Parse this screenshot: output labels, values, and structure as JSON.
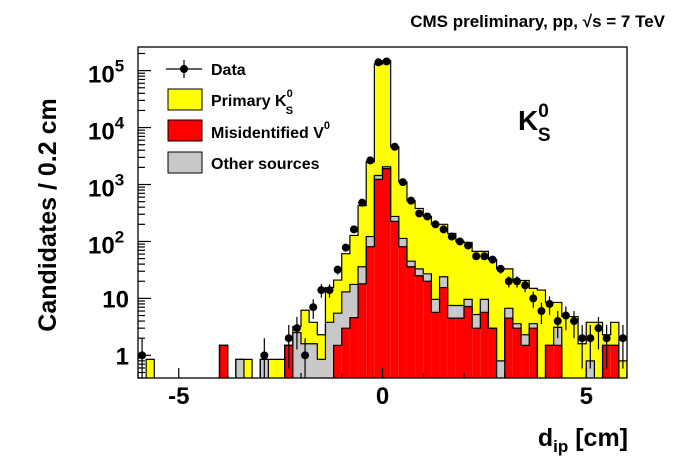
{
  "chart_data": {
    "type": "bar",
    "subtype": "stacked-histogram",
    "title": "CMS preliminary, pp,  √s = 7 TeV",
    "xlabel": {
      "main": "d",
      "sub": "ip",
      "rest": " [cm]"
    },
    "ylabel": "Candidates / 0.2 cm",
    "xlim": [
      -6,
      6
    ],
    "ylim": [
      0.4,
      260000
    ],
    "yscale": "log",
    "bin_start": -6,
    "bin_width": 0.2,
    "x_ticks": [
      {
        "value": -5,
        "label": "-5"
      },
      {
        "value": 0,
        "label": "0"
      },
      {
        "value": 5,
        "label": "5"
      }
    ],
    "y_ticks": [
      {
        "value": 1,
        "base": "1",
        "exp": ""
      },
      {
        "value": 10,
        "base": "10",
        "exp": ""
      },
      {
        "value": 100,
        "base": "10",
        "exp": "2"
      },
      {
        "value": 1000,
        "base": "10",
        "exp": "3"
      },
      {
        "value": 10000,
        "base": "10",
        "exp": "4"
      },
      {
        "value": 100000,
        "base": "10",
        "exp": "5"
      }
    ],
    "annotation": {
      "main": "K",
      "sup": "0",
      "sub": "S"
    },
    "legend_position": "top-left",
    "series": [
      {
        "name": "Misidentified V0",
        "label": "Misidentified V",
        "sup": "0",
        "sub": "",
        "color": "#ff0000",
        "values": [
          0,
          0,
          0,
          0,
          0,
          0,
          0,
          0,
          0,
          0,
          1.5,
          0,
          0,
          0,
          0,
          0,
          0,
          0,
          1.5,
          0,
          0,
          0,
          0,
          0,
          1.5,
          3,
          4.6,
          18,
          81,
          1230,
          1900,
          225,
          81,
          36,
          25,
          20,
          5.7,
          15.5,
          4.5,
          4.5,
          7.2,
          3,
          5.7,
          3,
          0,
          4.5,
          3,
          1.5,
          3,
          0,
          1.5,
          1.5,
          0,
          0,
          0,
          0,
          0,
          1.5,
          1.5,
          0
        ]
      },
      {
        "name": "Other sources",
        "label": "Other sources",
        "sup": "",
        "sub": "",
        "color": "#c8c8c8",
        "values": [
          0,
          0,
          0,
          0,
          0,
          0,
          0,
          0,
          0,
          0,
          0,
          0,
          0.85,
          0,
          0,
          0.85,
          0,
          0,
          0,
          2.5,
          1.6,
          1.6,
          0.85,
          3.8,
          4,
          10,
          13,
          18,
          41,
          210,
          150,
          50,
          32,
          9,
          8,
          7,
          3.9,
          8.5,
          3,
          3,
          2.4,
          2.2,
          3.9,
          0,
          0.8,
          2.2,
          0.6,
          0.8,
          0.6,
          0,
          0,
          1.6,
          0,
          0,
          0,
          0.8,
          0,
          0,
          0,
          0
        ]
      },
      {
        "name": "Primary K0S",
        "label": "Primary K",
        "sup": "0",
        "sub": "S",
        "color": "#ffff00",
        "values": [
          0,
          0.85,
          0,
          0,
          0,
          0,
          0,
          0,
          0,
          0,
          0,
          0,
          0,
          0.85,
          0,
          0,
          0.85,
          0.85,
          0,
          0.7,
          4.6,
          2.2,
          1.45,
          11.7,
          15.5,
          48,
          110,
          389,
          2378,
          128560,
          147950,
          4325,
          987,
          475,
          347,
          248,
          190,
          176,
          130.5,
          92.5,
          86.4,
          61.8,
          57.4,
          45,
          32.2,
          26.3,
          17,
          18.3,
          11.4,
          14,
          7,
          5.4,
          4.8,
          4.8,
          1.6,
          3,
          3.8,
          0.8,
          2.3,
          0.8
        ]
      }
    ],
    "data": {
      "name": "Data",
      "label": "Data",
      "color": "#000000",
      "values": [
        1,
        0,
        0,
        0,
        0,
        0,
        0,
        0,
        0,
        0,
        0,
        0,
        0,
        0,
        0,
        1,
        0,
        0,
        2,
        3,
        1,
        7,
        14,
        14,
        32,
        78,
        163,
        480,
        2650,
        140000,
        145000,
        4600,
        1100,
        520,
        310,
        275,
        200,
        163,
        122,
        100,
        85,
        55,
        55,
        48,
        33,
        20,
        20,
        17,
        10,
        6,
        8,
        4,
        5,
        4,
        2,
        2,
        3,
        2,
        0,
        2
      ]
    }
  }
}
